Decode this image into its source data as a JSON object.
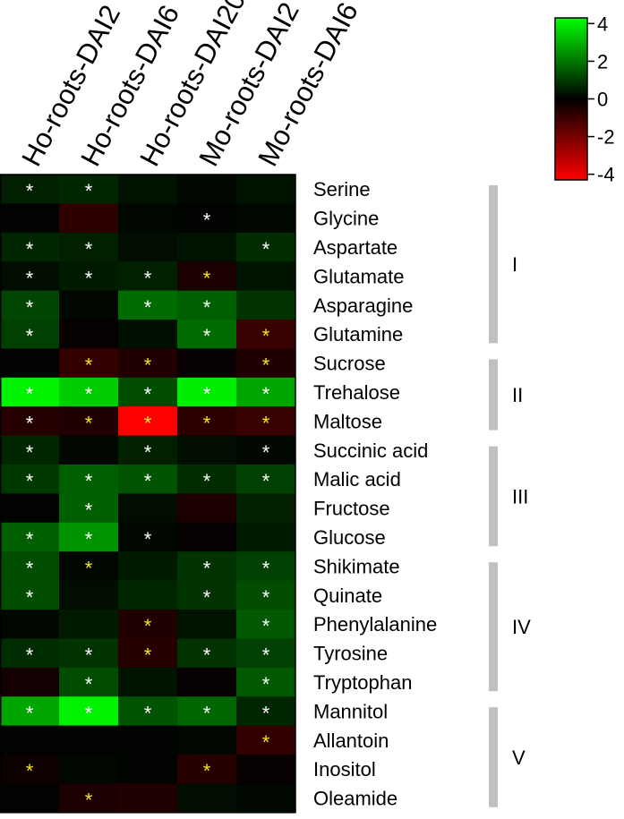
{
  "chart_data": {
    "type": "heatmap",
    "columns": [
      "Ho-roots-DAI2",
      "Ho-roots-DAI6",
      "Ho-roots-DAI20",
      "Mo-roots-DAI2",
      "Mo-roots-DAI6"
    ],
    "rows": [
      "Serine",
      "Glycine",
      "Aspartate",
      "Glutamate",
      "Asparagine",
      "Glutamine",
      "Sucrose",
      "Trehalose",
      "Maltose",
      "Succinic acid",
      "Malic acid",
      "Fructose",
      "Glucose",
      "Shikimate",
      "Quinate",
      "Phenylalanine",
      "Tyrosine",
      "Tryptophan",
      "Mannitol",
      "Allantoin",
      "Inositol",
      "Oleamide"
    ],
    "values": [
      [
        0.5,
        0.6,
        0.3,
        0.1,
        0.3
      ],
      [
        0.05,
        -0.7,
        0.1,
        0.05,
        0.1
      ],
      [
        0.6,
        0.5,
        0.2,
        0.3,
        0.7
      ],
      [
        0.2,
        0.4,
        0.5,
        -0.4,
        0.3
      ],
      [
        1.1,
        0.1,
        1.7,
        1.5,
        0.8
      ],
      [
        1.0,
        -0.1,
        0.25,
        1.7,
        -0.9
      ],
      [
        0.05,
        -0.8,
        -0.5,
        -0.1,
        -0.5
      ],
      [
        3.8,
        3.2,
        1.2,
        3.7,
        2.6
      ],
      [
        -0.6,
        -0.5,
        -4.0,
        -0.7,
        -0.9
      ],
      [
        0.6,
        0.1,
        0.5,
        0.2,
        0.1
      ],
      [
        0.9,
        1.5,
        1.3,
        0.7,
        1.0
      ],
      [
        0.05,
        1.5,
        0.2,
        -0.4,
        0.5
      ],
      [
        1.5,
        2.3,
        0.1,
        -0.1,
        0.4
      ],
      [
        1.2,
        0.1,
        0.4,
        0.8,
        1.0
      ],
      [
        1.2,
        0.2,
        0.6,
        0.8,
        1.2
      ],
      [
        0.1,
        0.4,
        -0.5,
        0.3,
        1.4
      ],
      [
        0.7,
        0.8,
        -0.6,
        0.8,
        1.0
      ],
      [
        -0.3,
        1.2,
        0.3,
        -0.1,
        1.4
      ],
      [
        2.6,
        3.8,
        1.3,
        1.6,
        0.6
      ],
      [
        0.05,
        0.05,
        0.05,
        0.1,
        -0.8
      ],
      [
        -0.2,
        0.1,
        0.05,
        -0.6,
        -0.1
      ],
      [
        0.05,
        -0.4,
        -0.5,
        0.2,
        0.1
      ]
    ],
    "significance": [
      [
        "white",
        "white",
        "",
        "",
        ""
      ],
      [
        "",
        "",
        "",
        "white",
        ""
      ],
      [
        "white",
        "white",
        "",
        "",
        "white"
      ],
      [
        "white",
        "white",
        "white",
        "yellow",
        ""
      ],
      [
        "white",
        "",
        "white",
        "white",
        ""
      ],
      [
        "white",
        "",
        "",
        "white",
        "yellow"
      ],
      [
        "",
        "yellow",
        "yellow",
        "",
        "yellow"
      ],
      [
        "white",
        "white",
        "white",
        "white",
        "white"
      ],
      [
        "white",
        "yellow",
        "yellow",
        "yellow",
        "yellow"
      ],
      [
        "white",
        "",
        "white",
        "",
        "white"
      ],
      [
        "white",
        "white",
        "white",
        "white",
        "white"
      ],
      [
        "",
        "white",
        "",
        "",
        ""
      ],
      [
        "white",
        "white",
        "white",
        "",
        ""
      ],
      [
        "white",
        "yellow",
        "",
        "white",
        "white"
      ],
      [
        "white",
        "",
        "",
        "white",
        "white"
      ],
      [
        "",
        "",
        "yellow",
        "",
        "white"
      ],
      [
        "white",
        "white",
        "yellow",
        "white",
        "white"
      ],
      [
        "",
        "white",
        "",
        "",
        "white"
      ],
      [
        "white",
        "white",
        "white",
        "white",
        "white"
      ],
      [
        "",
        "",
        "",
        "",
        "yellow"
      ],
      [
        "yellow",
        "",
        "",
        "yellow",
        ""
      ],
      [
        "",
        "yellow",
        "",
        "",
        ""
      ]
    ],
    "marker": "*",
    "marker_colors": {
      "white": "#ffffff",
      "yellow": "#f5e61e"
    },
    "color_scale": {
      "min": -4,
      "mid": 0,
      "max": 4,
      "low": "#ff0000",
      "zero": "#000000",
      "high": "#00ff00"
    },
    "legend_ticks": [
      "4",
      "2",
      "0",
      "-2",
      "-4"
    ],
    "legend_range": [
      -4.3,
      4.3
    ],
    "groups": [
      {
        "label": "I",
        "from": "Serine",
        "to": "Glutamine"
      },
      {
        "label": "II",
        "from": "Sucrose",
        "to": "Maltose"
      },
      {
        "label": "III",
        "from": "Succinic acid",
        "to": "Glucose"
      },
      {
        "label": "IV",
        "from": "Shikimate",
        "to": "Tryptophan"
      },
      {
        "label": "V",
        "from": "Mannitol",
        "to": "Oleamide"
      }
    ],
    "group_bar_color": "#c0c0c0"
  }
}
